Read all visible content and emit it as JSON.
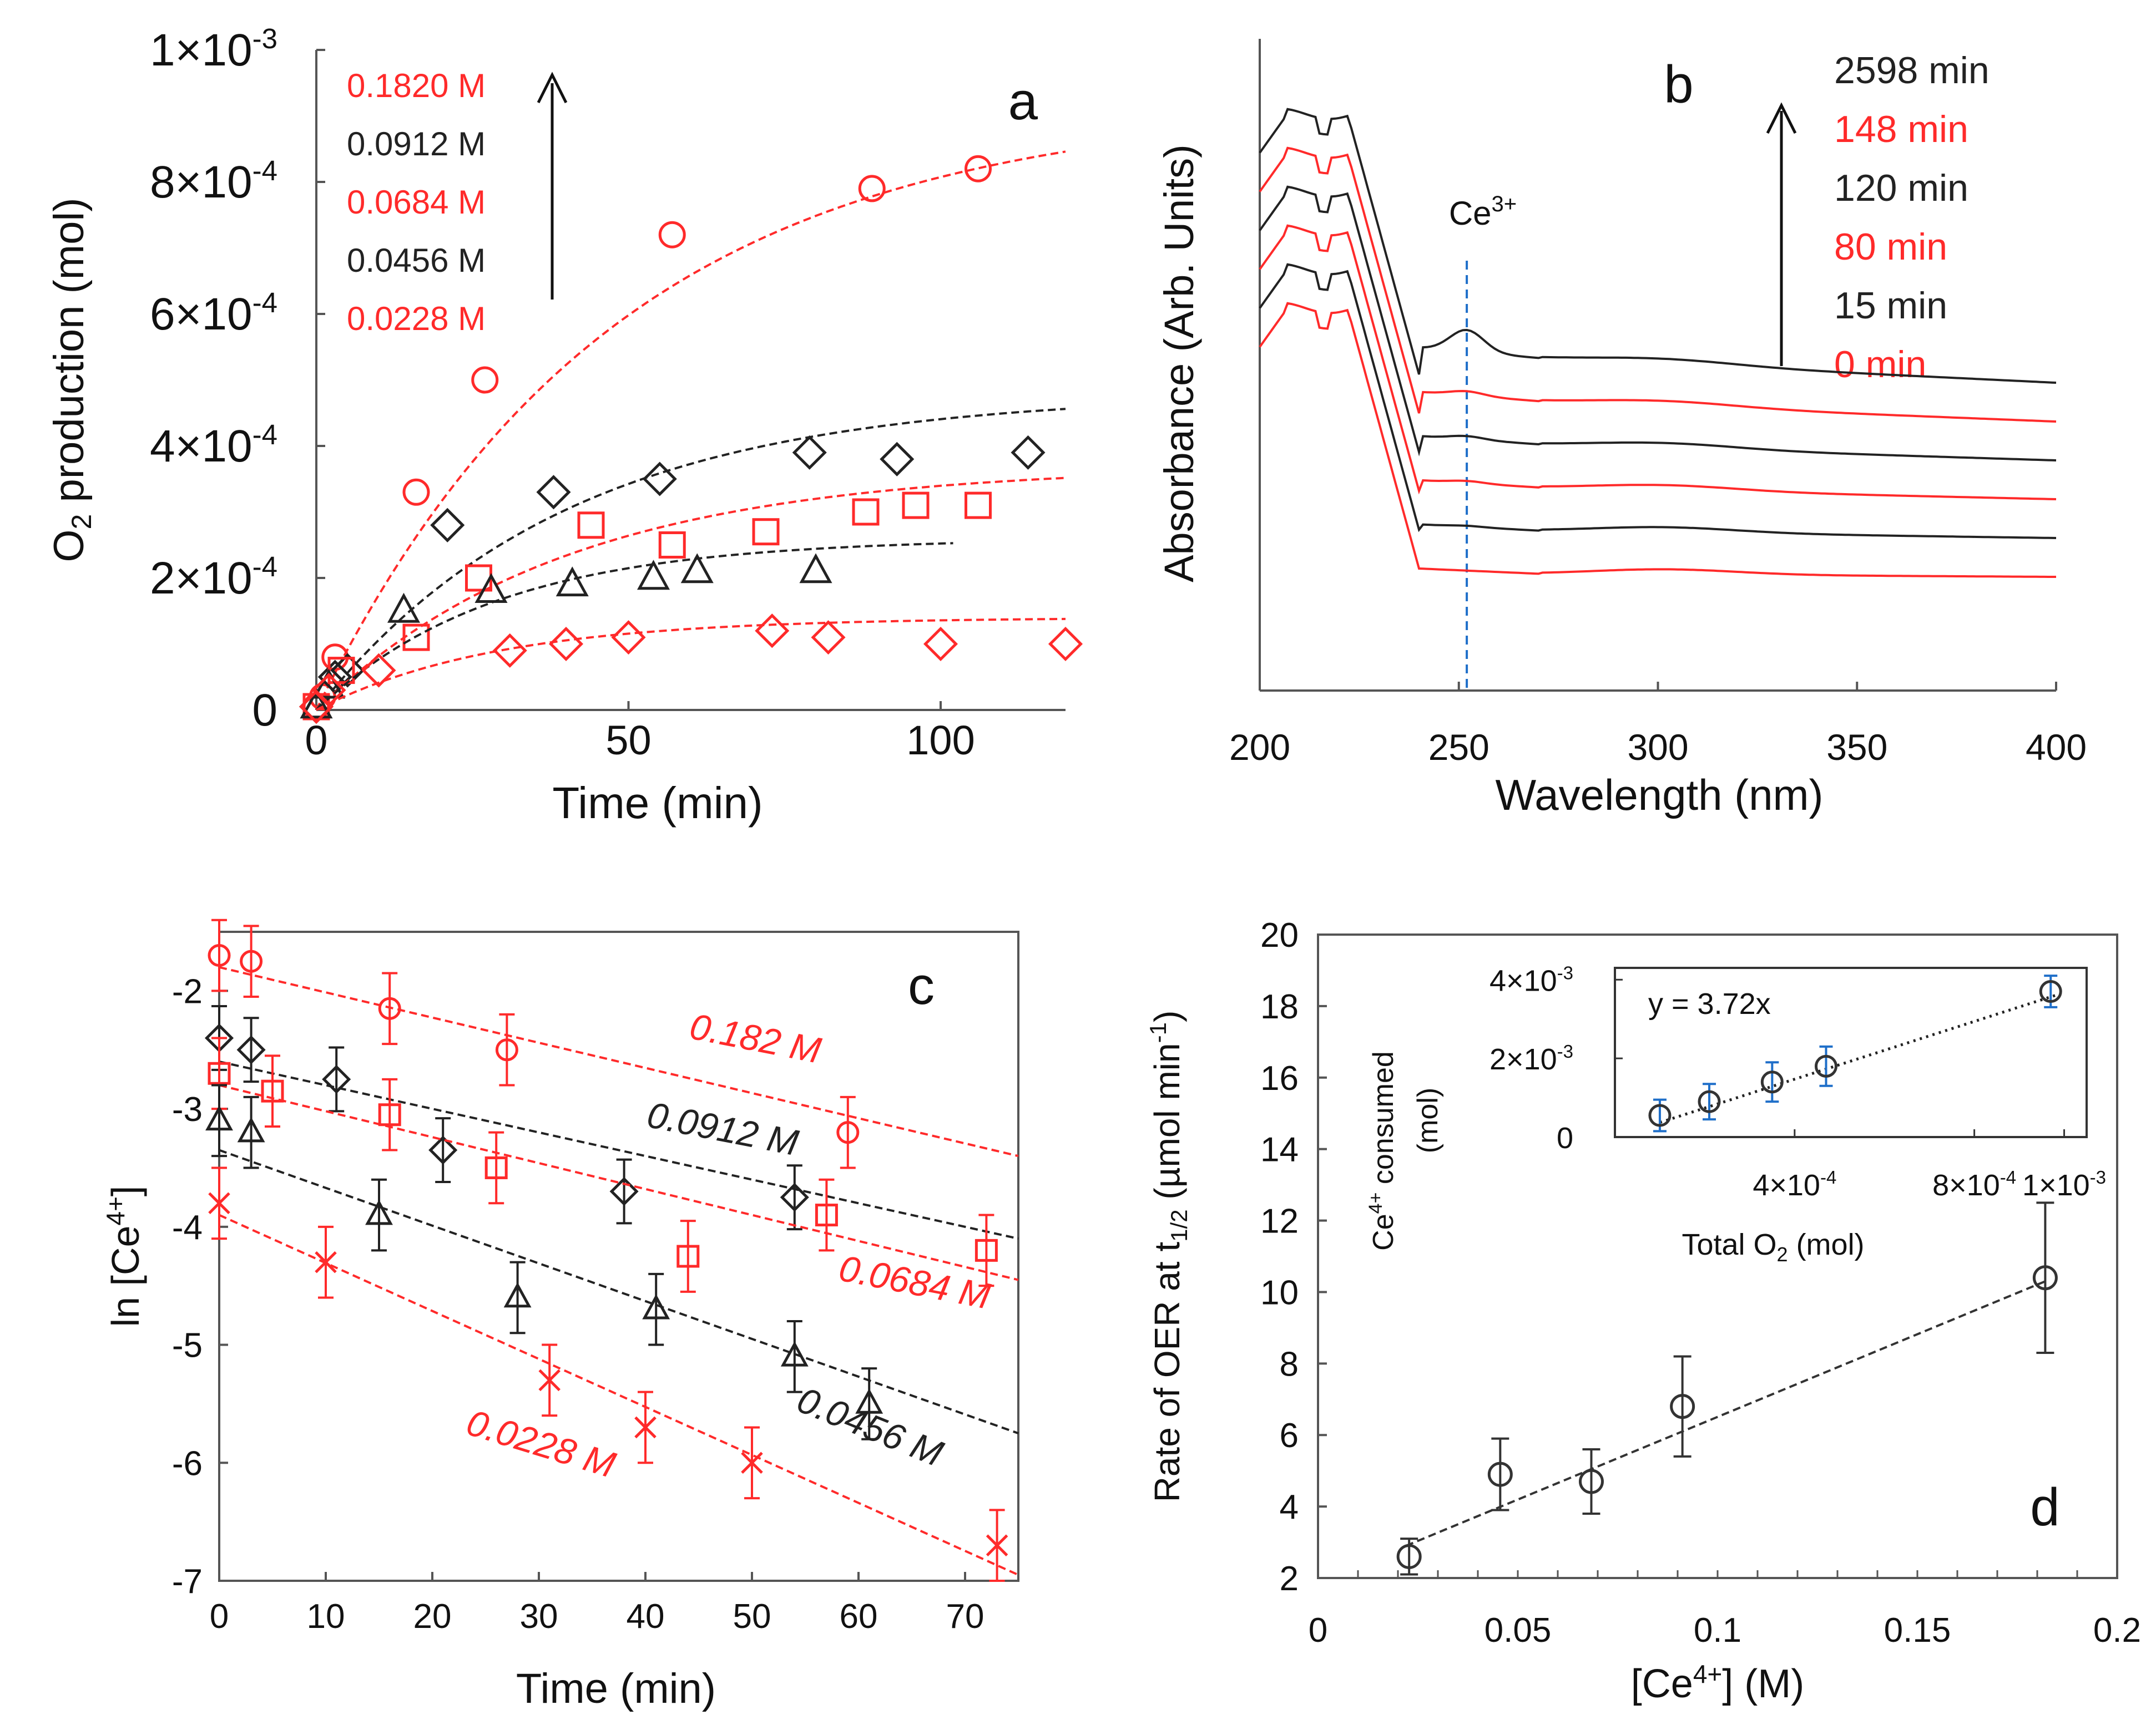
{
  "colors": {
    "red": "#ff2a2a",
    "black": "#222222",
    "blue": "#1f6fc9"
  },
  "chart_data": [
    {
      "panel": "a",
      "type": "scatter",
      "panel_label": "a",
      "xlabel": "Time (min)",
      "ylabel_parts": [
        "O",
        "2",
        " production  (mol)"
      ],
      "xlim": [
        0,
        120
      ],
      "ylim": [
        0,
        0.001
      ],
      "x_ticks": [
        {
          "v": 0,
          "label": "0"
        },
        {
          "v": 50,
          "label": "50"
        },
        {
          "v": 100,
          "label": "100"
        }
      ],
      "y_ticks": [
        {
          "v": 0,
          "label": "0"
        },
        {
          "v": 0.0002,
          "m": "2×10",
          "e": "-4"
        },
        {
          "v": 0.0004,
          "m": "4×10",
          "e": "-4"
        },
        {
          "v": 0.0006,
          "m": "6×10",
          "e": "-4"
        },
        {
          "v": 0.0008,
          "m": "8×10",
          "e": "-4"
        },
        {
          "v": 0.001,
          "m": "1×10",
          "e": "-3"
        }
      ],
      "legend": [
        {
          "label": "0.1820 M",
          "color": "red"
        },
        {
          "label": "0.0912 M",
          "color": "black"
        },
        {
          "label": "0.0684 M",
          "color": "red"
        },
        {
          "label": "0.0456 M",
          "color": "black"
        },
        {
          "label": "0.0228 M",
          "color": "red"
        }
      ],
      "series": [
        {
          "name": "0.1820 M",
          "color": "red",
          "marker": "circle",
          "x": [
            0,
            1,
            3,
            16,
            27,
            57,
            89,
            106
          ],
          "y": [
            5e-06,
            2e-05,
            8e-05,
            0.00033,
            0.0005,
            0.00072,
            0.00079,
            0.00082
          ],
          "fit": {
            "A": 0.00092,
            "k": 0.021,
            "xmax": 120
          }
        },
        {
          "name": "0.0912 M",
          "color": "black",
          "marker": "diamond",
          "x": [
            0,
            3,
            5,
            21,
            38,
            55,
            79,
            93,
            114
          ],
          "y": [
            5e-06,
            5e-05,
            6e-05,
            0.00028,
            0.00033,
            0.00035,
            0.00039,
            0.00038,
            0.00039
          ],
          "fit": {
            "A": 0.00048,
            "k": 0.025,
            "xmax": 120
          }
        },
        {
          "name": "0.0684 M",
          "color": "red",
          "marker": "square",
          "x": [
            0,
            4,
            16,
            26,
            44,
            57,
            72,
            88,
            96,
            106
          ],
          "y": [
            5e-06,
            6e-05,
            0.00011,
            0.0002,
            0.00028,
            0.00025,
            0.00027,
            0.0003,
            0.00031,
            0.00031
          ],
          "fit": {
            "A": 0.00037,
            "k": 0.025,
            "xmax": 120
          }
        },
        {
          "name": "0.0456 M",
          "color": "black",
          "marker": "triangle",
          "x": [
            0,
            2,
            14,
            28,
            41,
            54,
            61,
            80
          ],
          "y": [
            5e-06,
            3.5e-05,
            0.00015,
            0.00018,
            0.00019,
            0.0002,
            0.00021,
            0.00021
          ],
          "fit": {
            "A": 0.00026,
            "k": 0.035,
            "xmax": 102
          }
        },
        {
          "name": "0.0228 M",
          "color": "red",
          "marker": "diamond",
          "x": [
            0,
            2,
            10,
            31,
            40,
            50,
            73,
            82,
            100,
            120
          ],
          "y": [
            5e-06,
            3e-05,
            6e-05,
            9e-05,
            0.0001,
            0.00011,
            0.00012,
            0.00011,
            0.0001,
            0.0001
          ],
          "fit": {
            "A": 0.00014,
            "k": 0.035,
            "xmax": 120
          }
        }
      ]
    },
    {
      "panel": "b",
      "type": "line",
      "panel_label": "b",
      "xlabel": "Wavelength (nm)",
      "ylabel": "Absorbance (Arb. Units)",
      "xlim": [
        200,
        400
      ],
      "x_ticks": [
        {
          "v": 200,
          "label": "200"
        },
        {
          "v": 250,
          "label": "250"
        },
        {
          "v": 300,
          "label": "300"
        },
        {
          "v": 350,
          "label": "350"
        },
        {
          "v": 400,
          "label": "400"
        }
      ],
      "annotation": {
        "label": "Ce",
        "sup": "3+",
        "x": 252
      },
      "legend": [
        {
          "label": "2598  min",
          "color": "black"
        },
        {
          "label": "148 min",
          "color": "red"
        },
        {
          "label": "120 min",
          "color": "black"
        },
        {
          "label": "80 min",
          "color": "red"
        },
        {
          "label": "15 min",
          "color": "black"
        },
        {
          "label": "0 min",
          "color": "red"
        }
      ],
      "series": [
        {
          "name": "2598 min",
          "color": "black",
          "offset": 5,
          "peak": 1.0
        },
        {
          "name": "148 min",
          "color": "red",
          "offset": 4,
          "peak": 0.2
        },
        {
          "name": "120 min",
          "color": "black",
          "offset": 3,
          "peak": 0.15
        },
        {
          "name": "80 min",
          "color": "red",
          "offset": 2,
          "peak": 0.1
        },
        {
          "name": "15 min",
          "color": "black",
          "offset": 1,
          "peak": 0.05
        },
        {
          "name": "0 min",
          "color": "red",
          "offset": 0,
          "peak": 0.0
        }
      ]
    },
    {
      "panel": "c",
      "type": "scatter",
      "panel_label": "c",
      "xlabel": "Time (min)",
      "ylabel": "ln [Ce",
      "ylabel_sup": "4+",
      "ylabel_end": "]",
      "xlim": [
        0,
        75
      ],
      "ylim": [
        -7,
        -1.5
      ],
      "x_ticks": [
        {
          "v": 0,
          "label": "0"
        },
        {
          "v": 10,
          "label": "10"
        },
        {
          "v": 20,
          "label": "20"
        },
        {
          "v": 30,
          "label": "30"
        },
        {
          "v": 40,
          "label": "40"
        },
        {
          "v": 50,
          "label": "50"
        },
        {
          "v": 60,
          "label": "60"
        },
        {
          "v": 70,
          "label": "70"
        }
      ],
      "y_ticks": [
        {
          "v": -2,
          "label": "-2"
        },
        {
          "v": -3,
          "label": "-3"
        },
        {
          "v": -4,
          "label": "-4"
        },
        {
          "v": -5,
          "label": "-5"
        },
        {
          "v": -6,
          "label": "-6"
        },
        {
          "v": -7,
          "label": "-7"
        }
      ],
      "series": [
        {
          "name": "0.182 M",
          "color": "red",
          "marker": "circle",
          "err": 0.3,
          "x": [
            0,
            3,
            16,
            27,
            59
          ],
          "y": [
            -1.7,
            -1.75,
            -2.15,
            -2.5,
            -3.2
          ],
          "fit": {
            "x": [
              0,
              75
            ],
            "y": [
              -1.8,
              -3.4
            ]
          },
          "label": {
            "text": "0.182 M",
            "x": 44,
            "y": -2.4,
            "angle": 11
          }
        },
        {
          "name": "0.0912 M",
          "color": "black",
          "marker": "diamond",
          "err": 0.27,
          "x": [
            0,
            3,
            11,
            21,
            38,
            54
          ],
          "y": [
            -2.4,
            -2.5,
            -2.75,
            -3.35,
            -3.7,
            -3.75
          ],
          "fit": {
            "x": [
              0,
              75
            ],
            "y": [
              -2.6,
              -4.1
            ]
          },
          "label": {
            "text": "0.0912 M",
            "x": 40,
            "y": -3.15,
            "angle": 11
          }
        },
        {
          "name": "0.0684 M",
          "color": "red",
          "marker": "square",
          "err": 0.3,
          "x": [
            0,
            5,
            16,
            26,
            44,
            57,
            72
          ],
          "y": [
            -2.7,
            -2.85,
            -3.05,
            -3.5,
            -4.25,
            -3.9,
            -4.2
          ],
          "fit": {
            "x": [
              0,
              75
            ],
            "y": [
              -2.8,
              -4.45
            ]
          },
          "label": {
            "text": "0.0684 M",
            "x": 58,
            "y": -4.45,
            "angle": 11
          }
        },
        {
          "name": "0.0456 M",
          "color": "black",
          "marker": "triangle",
          "err": 0.3,
          "x": [
            0,
            3,
            15,
            28,
            41,
            54,
            61
          ],
          "y": [
            -3.1,
            -3.2,
            -3.9,
            -4.6,
            -4.7,
            -5.1,
            -5.5
          ],
          "fit": {
            "x": [
              0,
              75
            ],
            "y": [
              -3.35,
              -5.75
            ]
          },
          "label": {
            "text": "0.0456 M",
            "x": 54,
            "y": -5.55,
            "angle": 22
          }
        },
        {
          "name": "0.0228 M",
          "color": "red",
          "marker": "x",
          "err": 0.3,
          "x": [
            0,
            10,
            31,
            40,
            50,
            73
          ],
          "y": [
            -3.8,
            -4.3,
            -5.3,
            -5.7,
            -6.0,
            -6.7
          ],
          "fit": {
            "x": [
              0,
              75
            ],
            "y": [
              -3.9,
              -6.95
            ]
          },
          "label": {
            "text": "0.0228 M",
            "x": 23,
            "y": -5.75,
            "angle": 17
          }
        }
      ]
    },
    {
      "panel": "d",
      "type": "scatter",
      "panel_label": "d",
      "xlabel": "[Ce",
      "xlabel_sup": "4+",
      "xlabel_end": "] (M)",
      "ylabel": "Rate of OER at t",
      "ylabel_sub": "1/2",
      "ylabel_end": " (µmol min",
      "ylabel_sup": "-1",
      "ylabel_close": ")",
      "xlim": [
        0,
        0.2
      ],
      "ylim": [
        2,
        20
      ],
      "x_ticks": [
        {
          "v": 0,
          "label": "0"
        },
        {
          "v": 0.05,
          "label": "0.05"
        },
        {
          "v": 0.1,
          "label": "0.1"
        },
        {
          "v": 0.15,
          "label": "0.15"
        },
        {
          "v": 0.2,
          "label": "0.2"
        }
      ],
      "y_ticks": [
        {
          "v": 2,
          "label": "2"
        },
        {
          "v": 4,
          "label": "4"
        },
        {
          "v": 6,
          "label": "6"
        },
        {
          "v": 8,
          "label": "8"
        },
        {
          "v": 10,
          "label": "10"
        },
        {
          "v": 12,
          "label": "12"
        },
        {
          "v": 14,
          "label": "14"
        },
        {
          "v": 16,
          "label": "16"
        },
        {
          "v": 18,
          "label": "18"
        },
        {
          "v": 20,
          "label": "20"
        }
      ],
      "series": [
        {
          "name": "rate",
          "color": "black",
          "marker": "circle",
          "x": [
            0.0228,
            0.0456,
            0.0684,
            0.0912,
            0.182
          ],
          "y": [
            2.6,
            4.9,
            4.7,
            6.8,
            10.4
          ],
          "err": [
            0.5,
            1.0,
            0.9,
            1.4,
            2.1
          ],
          "fit": {
            "x": [
              0.022,
              0.182
            ],
            "y": [
              2.9,
              10.3
            ]
          }
        }
      ],
      "inset": {
        "type": "scatter",
        "equation": "y = 3.72x",
        "xlabel": "Total O",
        "xlabel_sub": "2",
        "xlabel_end": " (mol)",
        "ylabel_a": "Ce",
        "ylabel_a_sup": "4+",
        "ylabel_a_end": " consumed",
        "ylabel_b": "(mol)",
        "xlim": [
          0,
          0.00105
        ],
        "ylim": [
          0,
          0.0043
        ],
        "x_ticks": [
          {
            "v": 0.0004,
            "m": "4×10",
            "e": "-4"
          },
          {
            "v": 0.0008,
            "m": "8×10",
            "e": "-4"
          },
          {
            "v": 0.001,
            "m": "1×10",
            "e": "-3"
          }
        ],
        "y_ticks": [
          {
            "v": 0,
            "label": "0"
          },
          {
            "v": 0.002,
            "m": "2×10",
            "e": "-3"
          },
          {
            "v": 0.004,
            "m": "4×10",
            "e": "-3"
          }
        ],
        "x": [
          0.0001,
          0.00021,
          0.00035,
          0.00047,
          0.00097
        ],
        "y": [
          0.00055,
          0.0009,
          0.0014,
          0.0018,
          0.0037
        ],
        "err": [
          0.0004,
          0.00045,
          0.0005,
          0.0005,
          0.0004
        ],
        "fit": {
          "x": [
            0.0001,
            0.00098
          ],
          "y": [
            0.00037,
            0.0036
          ]
        }
      }
    }
  ]
}
